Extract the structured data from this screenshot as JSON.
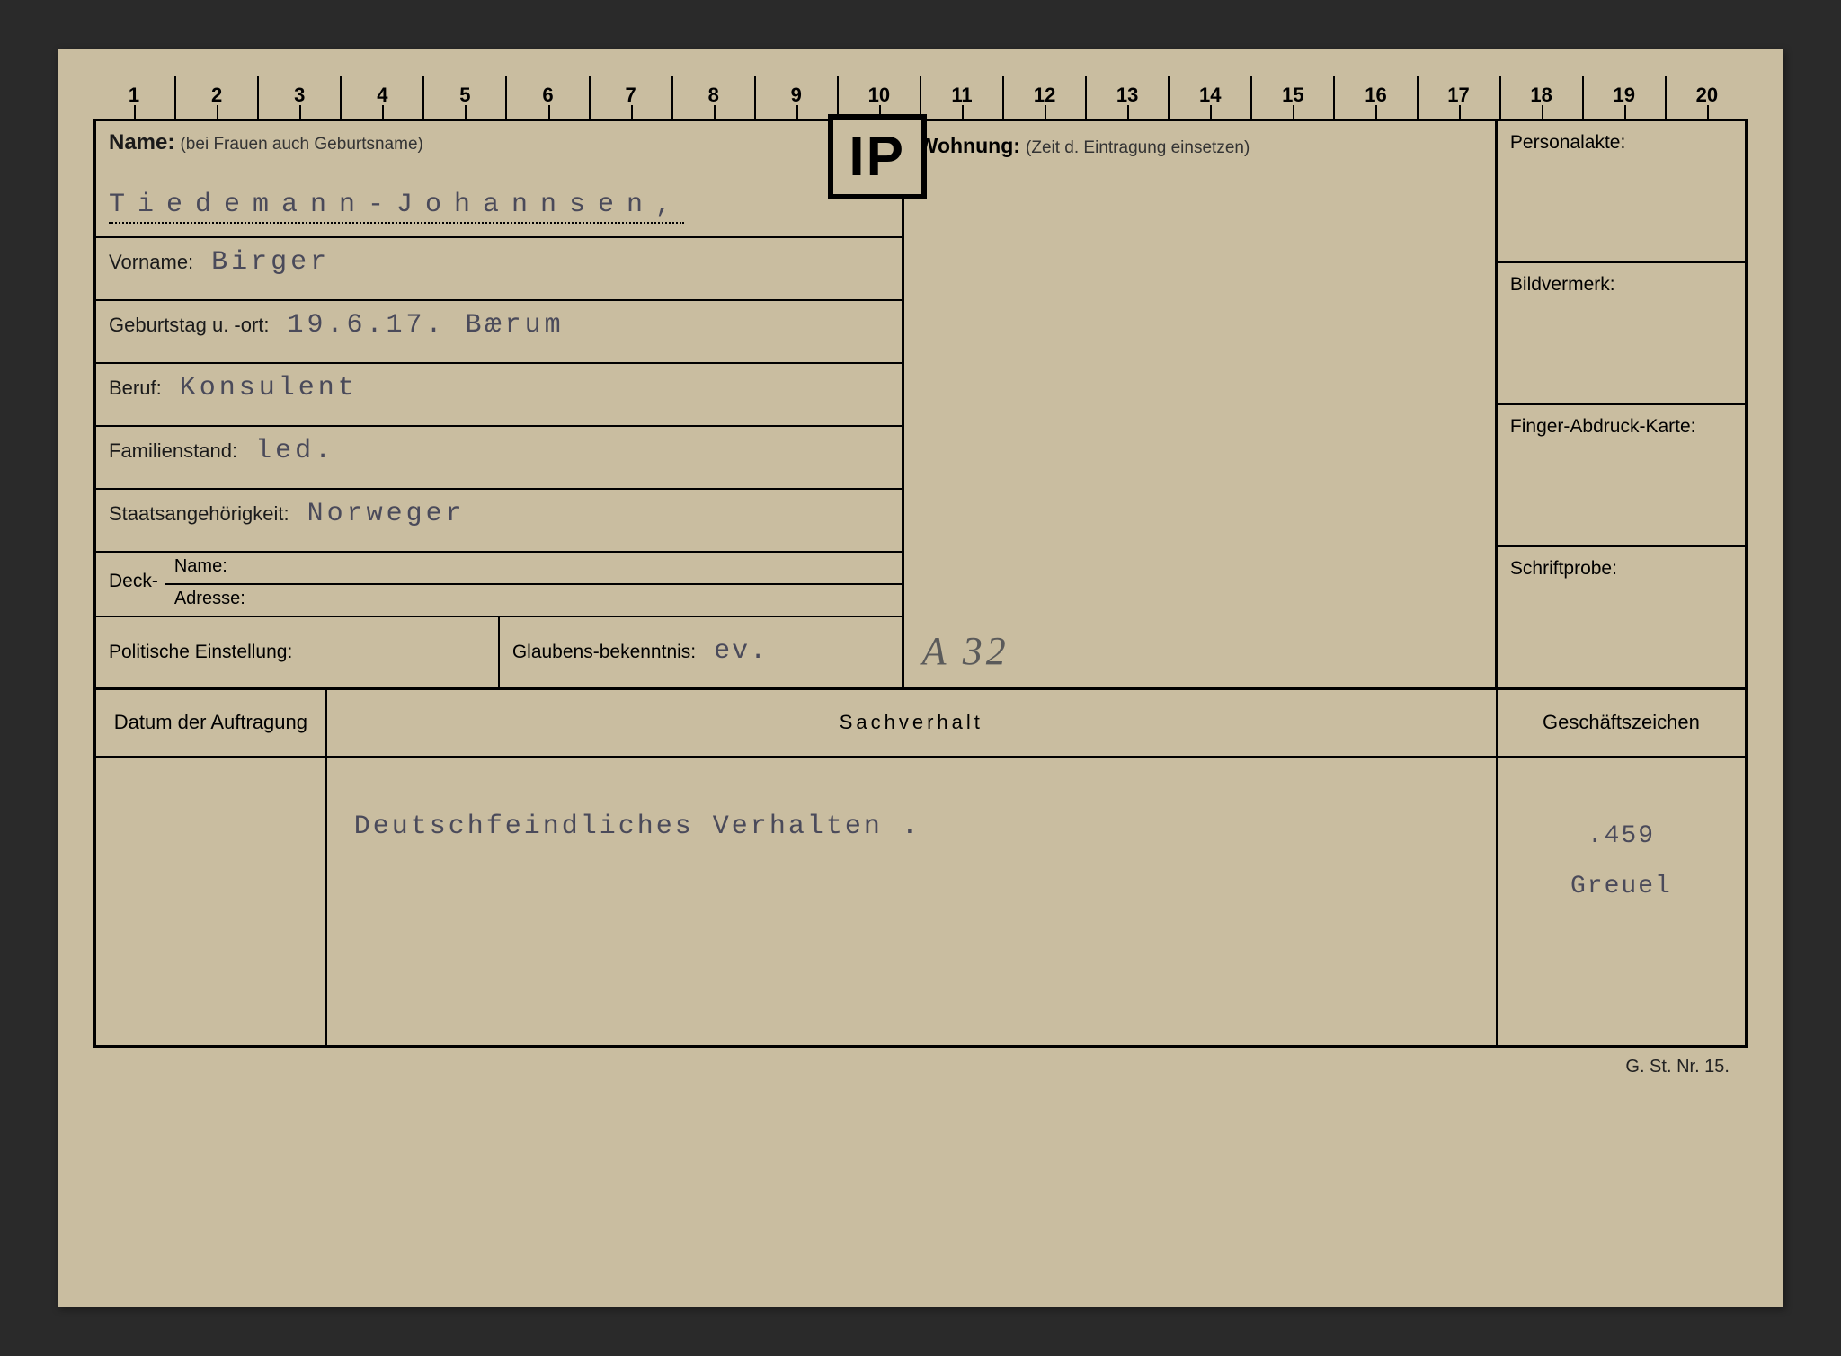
{
  "ruler": [
    "1",
    "2",
    "3",
    "4",
    "5",
    "6",
    "7",
    "8",
    "9",
    "10",
    "11",
    "12",
    "13",
    "14",
    "15",
    "16",
    "17",
    "18",
    "19",
    "20"
  ],
  "badge": "IP",
  "labels": {
    "name": "Name:",
    "name_sub": "(bei Frauen auch Geburtsname)",
    "vorname": "Vorname:",
    "geburtstag": "Geburtstag u. -ort:",
    "beruf": "Beruf:",
    "familienstand": "Familienstand:",
    "staatsang": "Staatsangehörigkeit:",
    "deck": "Deck-",
    "deck_name": "Name:",
    "deck_adresse": "Adresse:",
    "politische": "Politische Einstellung:",
    "glaubens": "Glaubens-bekenntnis:",
    "wohnung": "Wohnung:",
    "wohnung_sub": "(Zeit d. Eintragung einsetzen)",
    "personalakte": "Personalakte:",
    "bildvermerk": "Bildvermerk:",
    "finger": "Finger-Abdruck-Karte:",
    "schriftprobe": "Schriftprobe:",
    "datum": "Datum der Auftragung",
    "sachverhalt": "Sachverhalt",
    "geschaeft": "Geschäftszeichen"
  },
  "values": {
    "name": "Tiedemann-Johannsen,",
    "vorname": "Birger",
    "geburtstag": "19.6.17. Bærum",
    "beruf": "Konsulent",
    "familienstand": "led.",
    "staatsang": "Norweger",
    "glaubens": "ev.",
    "handwritten": "A 32",
    "sachverhalt": "Deutschfeindliches Verhalten .",
    "geschaeft_num": ".459",
    "geschaeft_txt": "Greuel"
  },
  "footer": "G. St. Nr. 15.",
  "colors": {
    "card_bg": "#c9bda0",
    "page_bg": "#2a2a2a",
    "line": "#000000",
    "typed": "#4a4a5a",
    "printed": "#1a1a1a"
  },
  "typography": {
    "label_size_pt": 16,
    "value_size_pt": 22,
    "value_font": "Courier New",
    "label_font": "Arial"
  }
}
